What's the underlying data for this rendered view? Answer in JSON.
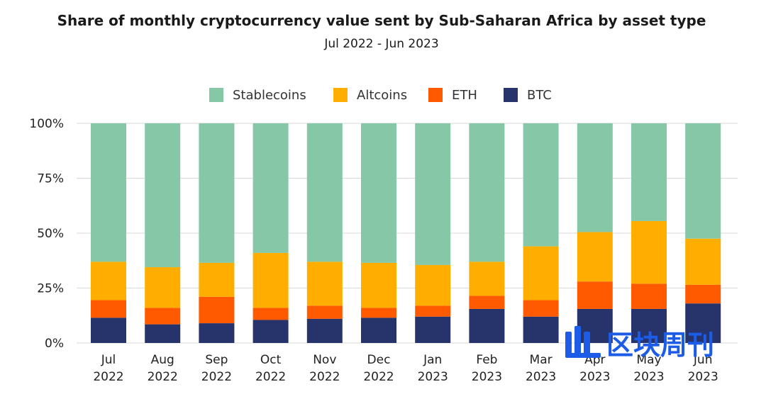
{
  "chart_data": {
    "type": "bar",
    "stacked": true,
    "title": "Share of monthly cryptocurrency value sent by Sub-Saharan Africa by asset type",
    "subtitle": "Jul 2022 - Jun 2023",
    "categories": [
      [
        "Jul",
        "2022"
      ],
      [
        "Aug",
        "2022"
      ],
      [
        "Sep",
        "2022"
      ],
      [
        "Oct",
        "2022"
      ],
      [
        "Nov",
        "2022"
      ],
      [
        "Dec",
        "2022"
      ],
      [
        "Jan",
        "2023"
      ],
      [
        "Feb",
        "2023"
      ],
      [
        "Mar",
        "2023"
      ],
      [
        "Apr",
        "2023"
      ],
      [
        "May",
        "2023"
      ],
      [
        "Jun",
        "2023"
      ]
    ],
    "ylim": [
      0,
      100
    ],
    "yticks": [
      0,
      25,
      50,
      75,
      100
    ],
    "ytick_labels": [
      "0%",
      "25%",
      "50%",
      "75%",
      "100%"
    ],
    "grid": true,
    "legend_position": "top",
    "series": [
      {
        "name": "BTC",
        "color": "#26346b",
        "values": [
          11.5,
          8.5,
          9,
          10.5,
          11,
          11.5,
          12,
          15.5,
          12,
          15.5,
          15.5,
          18
        ]
      },
      {
        "name": "ETH",
        "color": "#ff5a00",
        "values": [
          8,
          7.5,
          12,
          5.5,
          6,
          4.5,
          5,
          6,
          7.5,
          12.5,
          11.5,
          8.5
        ]
      },
      {
        "name": "Altcoins",
        "color": "#ffae00",
        "values": [
          17.5,
          18.5,
          15.5,
          25,
          20,
          20.5,
          18.5,
          15.5,
          24.5,
          22.5,
          28.5,
          21
        ]
      },
      {
        "name": "Stablecoins",
        "color": "#85c7a6",
        "values": [
          63,
          65.5,
          63.5,
          59,
          63,
          63.5,
          64.5,
          63,
          56,
          49.5,
          44.5,
          52.5
        ]
      }
    ],
    "legend_order": [
      "Stablecoins",
      "Altcoins",
      "ETH",
      "BTC"
    ]
  },
  "watermark": {
    "text": "区块周刊"
  }
}
